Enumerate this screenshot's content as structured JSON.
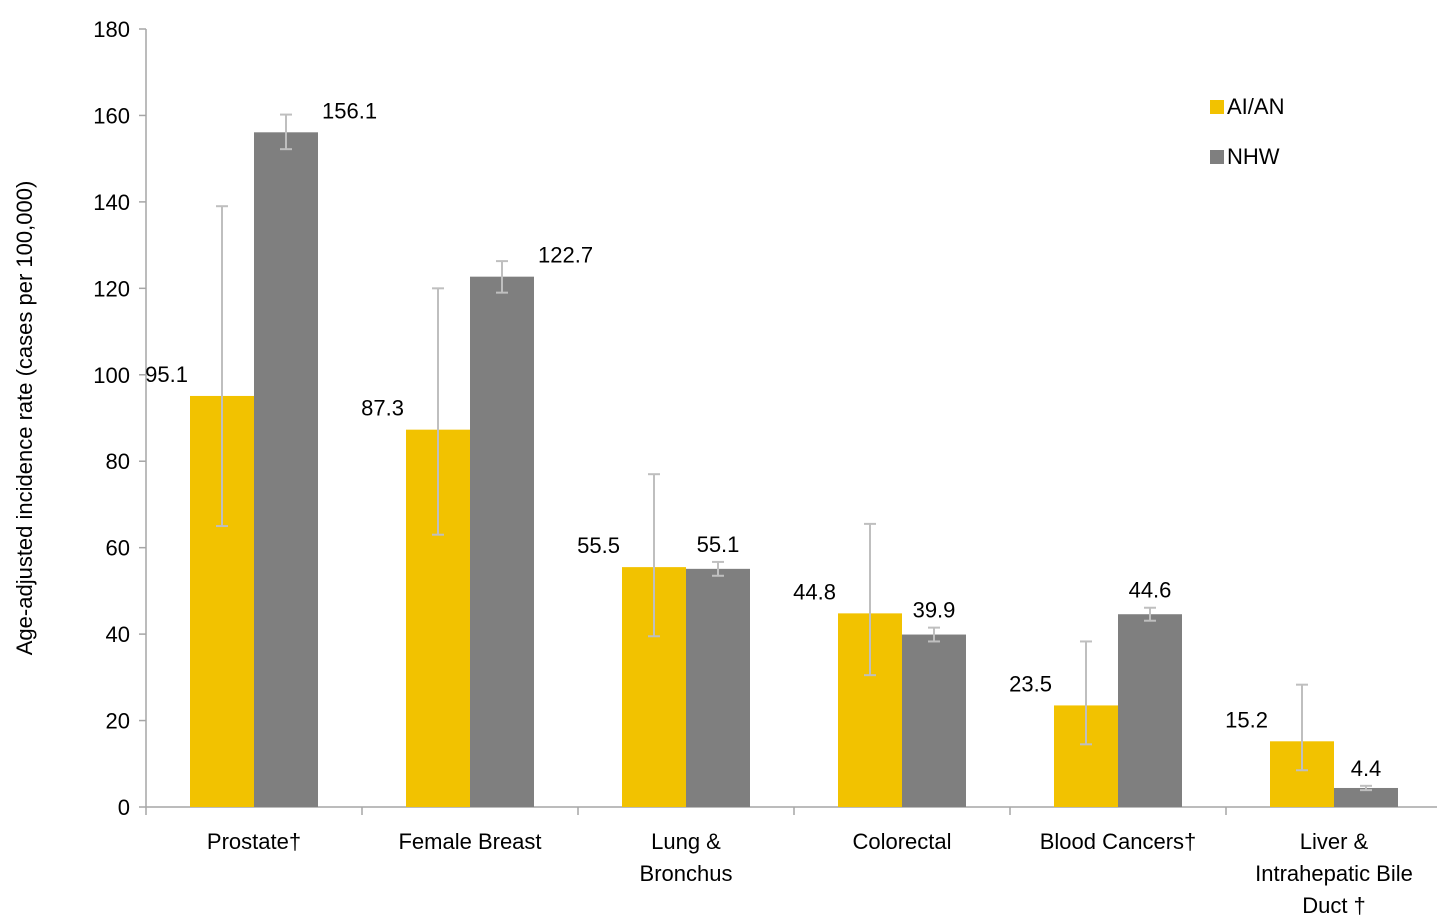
{
  "chart_data": {
    "type": "bar",
    "title": "",
    "xlabel": "",
    "ylabel": "Age-adjusted incidence rate (cases per 100,000)",
    "ylim": [
      0,
      180
    ],
    "yticks": [
      "0",
      "20",
      "40",
      "60",
      "80",
      "100",
      "120",
      "140",
      "160",
      "180"
    ],
    "grid": false,
    "legend_position": "top-right",
    "categories": [
      [
        "Prostate†"
      ],
      [
        "Female Breast"
      ],
      [
        "Lung &",
        "Bronchus"
      ],
      [
        "Colorectal"
      ],
      [
        "Blood Cancers†"
      ],
      [
        "Liver &",
        "Intrahepatic Bile",
        "Duct †"
      ]
    ],
    "series": [
      {
        "name": "AI/AN",
        "color": "#F2C200",
        "values": [
          95.1,
          87.3,
          55.5,
          44.8,
          23.5,
          15.2
        ],
        "labels": [
          "95.1",
          "87.3",
          "55.5",
          "44.8",
          "23.5",
          "15.2"
        ],
        "error_low": [
          65,
          63,
          39.5,
          30.5,
          14.5,
          8.5
        ],
        "error_high": [
          139,
          120,
          77,
          65.5,
          38.3,
          28.3
        ]
      },
      {
        "name": "NHW",
        "color": "#7F7F7F",
        "values": [
          156.1,
          122.7,
          55.1,
          39.9,
          44.6,
          4.4
        ],
        "labels": [
          "156.1",
          "122.7",
          "55.1",
          "39.9",
          "44.6",
          "4.4"
        ],
        "error_low": [
          152.2,
          119,
          53.5,
          38.3,
          43.1,
          3.9
        ],
        "error_high": [
          160.2,
          126.3,
          56.7,
          41.5,
          46.1,
          4.9
        ]
      }
    ],
    "error_bar_color": "#BFBFBF"
  }
}
